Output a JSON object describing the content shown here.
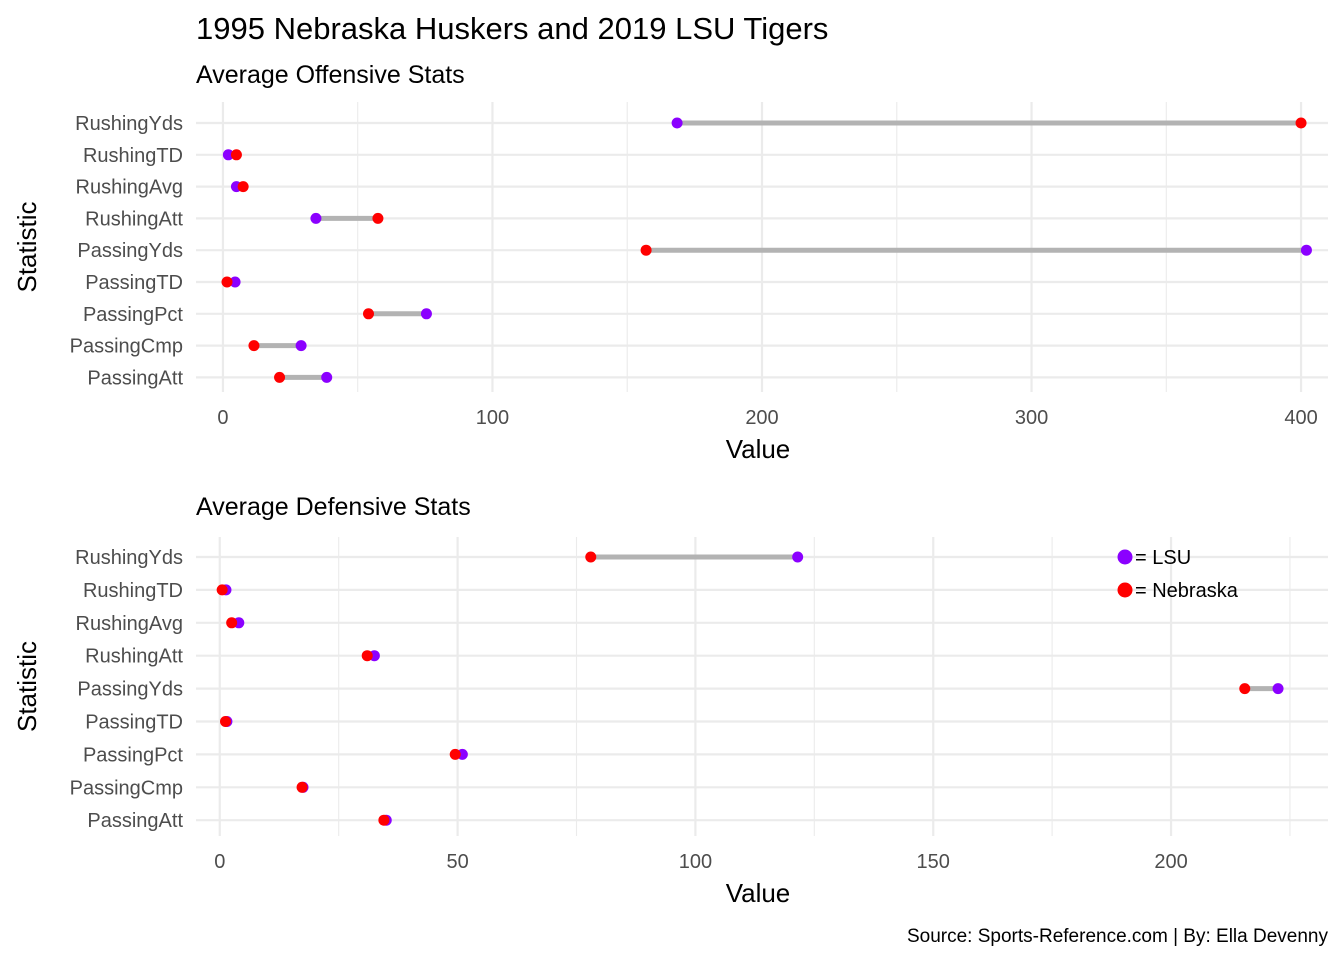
{
  "title": "1995 Nebraska Huskers and 2019 LSU Tigers",
  "caption": "Source: Sports-Reference.com | By: Ella Devenny",
  "colors": {
    "lsu": "#8B00FF",
    "nebraska": "#FF0000",
    "segment": "#B3B3B3",
    "grid": "#EBEBEB"
  },
  "legend": {
    "position": "top-right inside bottom panel",
    "items": [
      {
        "label": "= LSU",
        "color": "#8B00FF"
      },
      {
        "label": "= Nebraska",
        "color": "#FF0000"
      }
    ]
  },
  "chart_data": [
    {
      "type": "dumbbell",
      "subtitle": "Average Offensive Stats",
      "xlabel": "Value",
      "ylabel": "Statistic",
      "xlim": [
        -10,
        410
      ],
      "xticks": [
        0,
        100,
        200,
        300,
        400
      ],
      "grid": true,
      "categories": [
        "RushingYds",
        "RushingTD",
        "RushingAvg",
        "RushingAtt",
        "PassingYds",
        "PassingTD",
        "PassingPct",
        "PassingCmp",
        "PassingAtt"
      ],
      "series": [
        {
          "name": "LSU",
          "values": [
            168.5,
            2.0,
            5.0,
            34.5,
            402.0,
            4.5,
            75.5,
            29.0,
            38.5
          ]
        },
        {
          "name": "Nebraska",
          "values": [
            400.0,
            5.0,
            7.5,
            57.5,
            157.0,
            1.5,
            54.0,
            11.5,
            21.0
          ]
        }
      ]
    },
    {
      "type": "dumbbell",
      "subtitle": "Average Defensive Stats",
      "xlabel": "Value",
      "ylabel": "Statistic",
      "xlim": [
        -5,
        233
      ],
      "xticks": [
        0,
        50,
        100,
        150,
        200
      ],
      "grid": true,
      "categories": [
        "RushingYds",
        "RushingTD",
        "RushingAvg",
        "RushingAtt",
        "PassingYds",
        "PassingTD",
        "PassingPct",
        "PassingCmp",
        "PassingAtt"
      ],
      "series": [
        {
          "name": "LSU",
          "values": [
            121.5,
            1.3,
            4.0,
            32.5,
            222.5,
            1.5,
            51.0,
            17.5,
            35.0
          ]
        },
        {
          "name": "Nebraska",
          "values": [
            78.0,
            0.5,
            2.5,
            31.0,
            215.5,
            1.2,
            49.5,
            17.3,
            34.5
          ]
        }
      ]
    }
  ]
}
